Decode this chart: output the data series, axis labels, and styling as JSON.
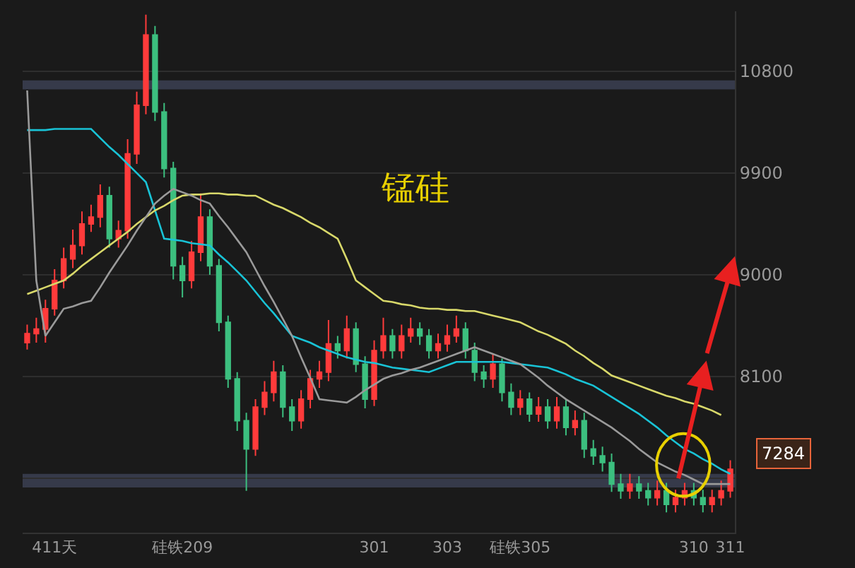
{
  "chart_data": {
    "type": "candlestick",
    "title": "锰硅",
    "categories": [
      null,
      null,
      null,
      "411天",
      null,
      null,
      null,
      null,
      null,
      null,
      null,
      null,
      null,
      null,
      null,
      null,
      null,
      "硅铁209",
      null,
      null,
      null,
      null,
      null,
      null,
      null,
      null,
      null,
      null,
      null,
      null,
      null,
      null,
      null,
      null,
      null,
      null,
      null,
      null,
      "301",
      null,
      null,
      null,
      null,
      null,
      null,
      null,
      "303",
      null,
      null,
      null,
      null,
      null,
      null,
      null,
      "硅铁305",
      null,
      null,
      null,
      null,
      null,
      null,
      null,
      null,
      null,
      null,
      null,
      null,
      null,
      null,
      null,
      null,
      null,
      null,
      "310",
      null,
      null,
      null,
      "311"
    ],
    "ohlc": [
      [
        8400,
        8560,
        8340,
        8480
      ],
      [
        8480,
        8620,
        8400,
        8520
      ],
      [
        8520,
        8780,
        8400,
        8700
      ],
      [
        8700,
        9050,
        8640,
        8950
      ],
      [
        8950,
        9240,
        8880,
        9140
      ],
      [
        9140,
        9400,
        9060,
        9260
      ],
      [
        9260,
        9560,
        9180,
        9450
      ],
      [
        9450,
        9620,
        9380,
        9510
      ],
      [
        9510,
        9800,
        9420,
        9700
      ],
      [
        9700,
        9780,
        9240,
        9320
      ],
      [
        9320,
        9480,
        9240,
        9390
      ],
      [
        9390,
        10200,
        9320,
        10070
      ],
      [
        10070,
        10620,
        9980,
        10500
      ],
      [
        10500,
        11300,
        10420,
        11120
      ],
      [
        11120,
        11200,
        10360,
        10440
      ],
      [
        10440,
        10520,
        9860,
        9940
      ],
      [
        9940,
        10000,
        8960,
        9080
      ],
      [
        9080,
        9160,
        8800,
        8950
      ],
      [
        8950,
        9300,
        8880,
        9200
      ],
      [
        9200,
        9720,
        9120,
        9510
      ],
      [
        9510,
        9580,
        9000,
        9080
      ],
      [
        9080,
        9140,
        8500,
        8580
      ],
      [
        8580,
        8640,
        8000,
        8080
      ],
      [
        8080,
        8140,
        7620,
        7710
      ],
      [
        7710,
        7780,
        7090,
        7460
      ],
      [
        7460,
        7900,
        7400,
        7830
      ],
      [
        7830,
        8060,
        7760,
        7960
      ],
      [
        7960,
        8240,
        7880,
        8140
      ],
      [
        8140,
        8200,
        7740,
        7830
      ],
      [
        7830,
        7900,
        7620,
        7710
      ],
      [
        7710,
        7980,
        7640,
        7900
      ],
      [
        7900,
        8160,
        7820,
        8080
      ],
      [
        8080,
        8240,
        8000,
        8140
      ],
      [
        8140,
        8600,
        8060,
        8390
      ],
      [
        8390,
        8460,
        8260,
        8330
      ],
      [
        8330,
        8640,
        8260,
        8520
      ],
      [
        8520,
        8580,
        8140,
        8210
      ],
      [
        8210,
        8280,
        7820,
        7900
      ],
      [
        7900,
        8420,
        7840,
        8330
      ],
      [
        8330,
        8620,
        8260,
        8460
      ],
      [
        8460,
        8520,
        8260,
        8330
      ],
      [
        8330,
        8560,
        8260,
        8460
      ],
      [
        8460,
        8620,
        8400,
        8520
      ],
      [
        8520,
        8580,
        8380,
        8460
      ],
      [
        8460,
        8520,
        8260,
        8330
      ],
      [
        8330,
        8480,
        8260,
        8390
      ],
      [
        8390,
        8560,
        8320,
        8460
      ],
      [
        8460,
        8640,
        8400,
        8520
      ],
      [
        8520,
        8580,
        8260,
        8330
      ],
      [
        8330,
        8400,
        8060,
        8140
      ],
      [
        8140,
        8200,
        8000,
        8080
      ],
      [
        8080,
        8300,
        8000,
        8210
      ],
      [
        8210,
        8260,
        7880,
        7960
      ],
      [
        7960,
        8040,
        7760,
        7830
      ],
      [
        7830,
        7980,
        7760,
        7900
      ],
      [
        7900,
        7960,
        7700,
        7770
      ],
      [
        7770,
        7920,
        7700,
        7830
      ],
      [
        7830,
        7900,
        7640,
        7710
      ],
      [
        7710,
        7920,
        7640,
        7830
      ],
      [
        7830,
        7900,
        7580,
        7650
      ],
      [
        7650,
        7800,
        7580,
        7710
      ],
      [
        7710,
        7780,
        7380,
        7460
      ],
      [
        7460,
        7540,
        7320,
        7400
      ],
      [
        7400,
        7480,
        7260,
        7340
      ],
      [
        7340,
        7420,
        7080,
        7150
      ],
      [
        7150,
        7240,
        7020,
        7090
      ],
      [
        7090,
        7240,
        7020,
        7150
      ],
      [
        7150,
        7220,
        7020,
        7090
      ],
      [
        7090,
        7160,
        6960,
        7030
      ],
      [
        7030,
        7180,
        6960,
        7090
      ],
      [
        7090,
        7160,
        6900,
        6970
      ],
      [
        6970,
        7100,
        6900,
        7030
      ],
      [
        7030,
        7160,
        6960,
        7090
      ],
      [
        7090,
        7160,
        6960,
        7030
      ],
      [
        7030,
        7100,
        6900,
        6970
      ],
      [
        6970,
        7100,
        6900,
        7030
      ],
      [
        7030,
        7180,
        6960,
        7090
      ],
      [
        7090,
        7360,
        7030,
        7280
      ]
    ],
    "series": [
      {
        "type": "line",
        "color": "#19c3d6",
        "values": [
          10280,
          10280,
          10280,
          10290,
          10290,
          10290,
          10290,
          10290,
          10210,
          10130,
          10060,
          9980,
          9900,
          9820,
          9570,
          9320,
          9310,
          9300,
          9280,
          9270,
          9260,
          9180,
          9110,
          9030,
          8950,
          8850,
          8750,
          8660,
          8560,
          8460,
          8430,
          8400,
          8360,
          8330,
          8300,
          8270,
          8250,
          8230,
          8220,
          8200,
          8180,
          8170,
          8160,
          8150,
          8140,
          8170,
          8200,
          8230,
          8230,
          8230,
          8230,
          8230,
          8230,
          8220,
          8210,
          8200,
          8190,
          8180,
          8150,
          8120,
          8080,
          8050,
          8020,
          7970,
          7920,
          7870,
          7820,
          7770,
          7710,
          7650,
          7580,
          7520,
          7460,
          7420,
          7370,
          7330,
          7280,
          7240
        ]
      },
      {
        "type": "line",
        "color": "#d8d86a",
        "values": [
          8830,
          8860,
          8890,
          8920,
          8950,
          9010,
          9080,
          9140,
          9200,
          9260,
          9320,
          9380,
          9450,
          9510,
          9570,
          9610,
          9660,
          9700,
          9710,
          9710,
          9720,
          9720,
          9710,
          9710,
          9700,
          9700,
          9660,
          9620,
          9590,
          9550,
          9510,
          9460,
          9420,
          9370,
          9320,
          9140,
          8950,
          8890,
          8830,
          8770,
          8760,
          8740,
          8730,
          8710,
          8700,
          8700,
          8690,
          8690,
          8680,
          8680,
          8660,
          8640,
          8620,
          8600,
          8580,
          8540,
          8500,
          8470,
          8430,
          8390,
          8330,
          8280,
          8220,
          8170,
          8110,
          8080,
          8050,
          8020,
          7990,
          7960,
          7930,
          7910,
          7880,
          7860,
          7830,
          7800,
          7760,
          null
        ]
      },
      {
        "type": "line",
        "color": "#9a9a9a",
        "values": [
          10630,
          8950,
          8460,
          8580,
          8700,
          8720,
          8750,
          8770,
          8890,
          9020,
          9140,
          9260,
          9390,
          9510,
          9630,
          9700,
          9760,
          9730,
          9700,
          9660,
          9630,
          9520,
          9420,
          9310,
          9200,
          9050,
          8900,
          8760,
          8610,
          8460,
          8270,
          8090,
          7900,
          7890,
          7880,
          7870,
          7920,
          7980,
          8030,
          8080,
          8110,
          8130,
          8160,
          8180,
          8210,
          8240,
          8270,
          8300,
          8330,
          8360,
          8330,
          8300,
          8270,
          8240,
          8210,
          8150,
          8090,
          8020,
          7960,
          7900,
          7850,
          7800,
          7750,
          7700,
          7650,
          7590,
          7530,
          7460,
          7400,
          7340,
          7300,
          7260,
          7230,
          7190,
          7150,
          7150,
          7150,
          7150
        ]
      }
    ],
    "ylim": [
      6720,
      11330
    ],
    "yticks": [
      {
        "value": 7200,
        "label": null
      },
      8100,
      9000,
      9900,
      10800
    ],
    "grid": "y",
    "bands": [
      {
        "axis": "y",
        "from": 10640,
        "to": 10720,
        "color": "#363a4a"
      },
      {
        "axis": "y",
        "from": 7120,
        "to": 7240,
        "color": "#363a4a"
      }
    ],
    "annotations": [
      "7284"
    ]
  }
}
